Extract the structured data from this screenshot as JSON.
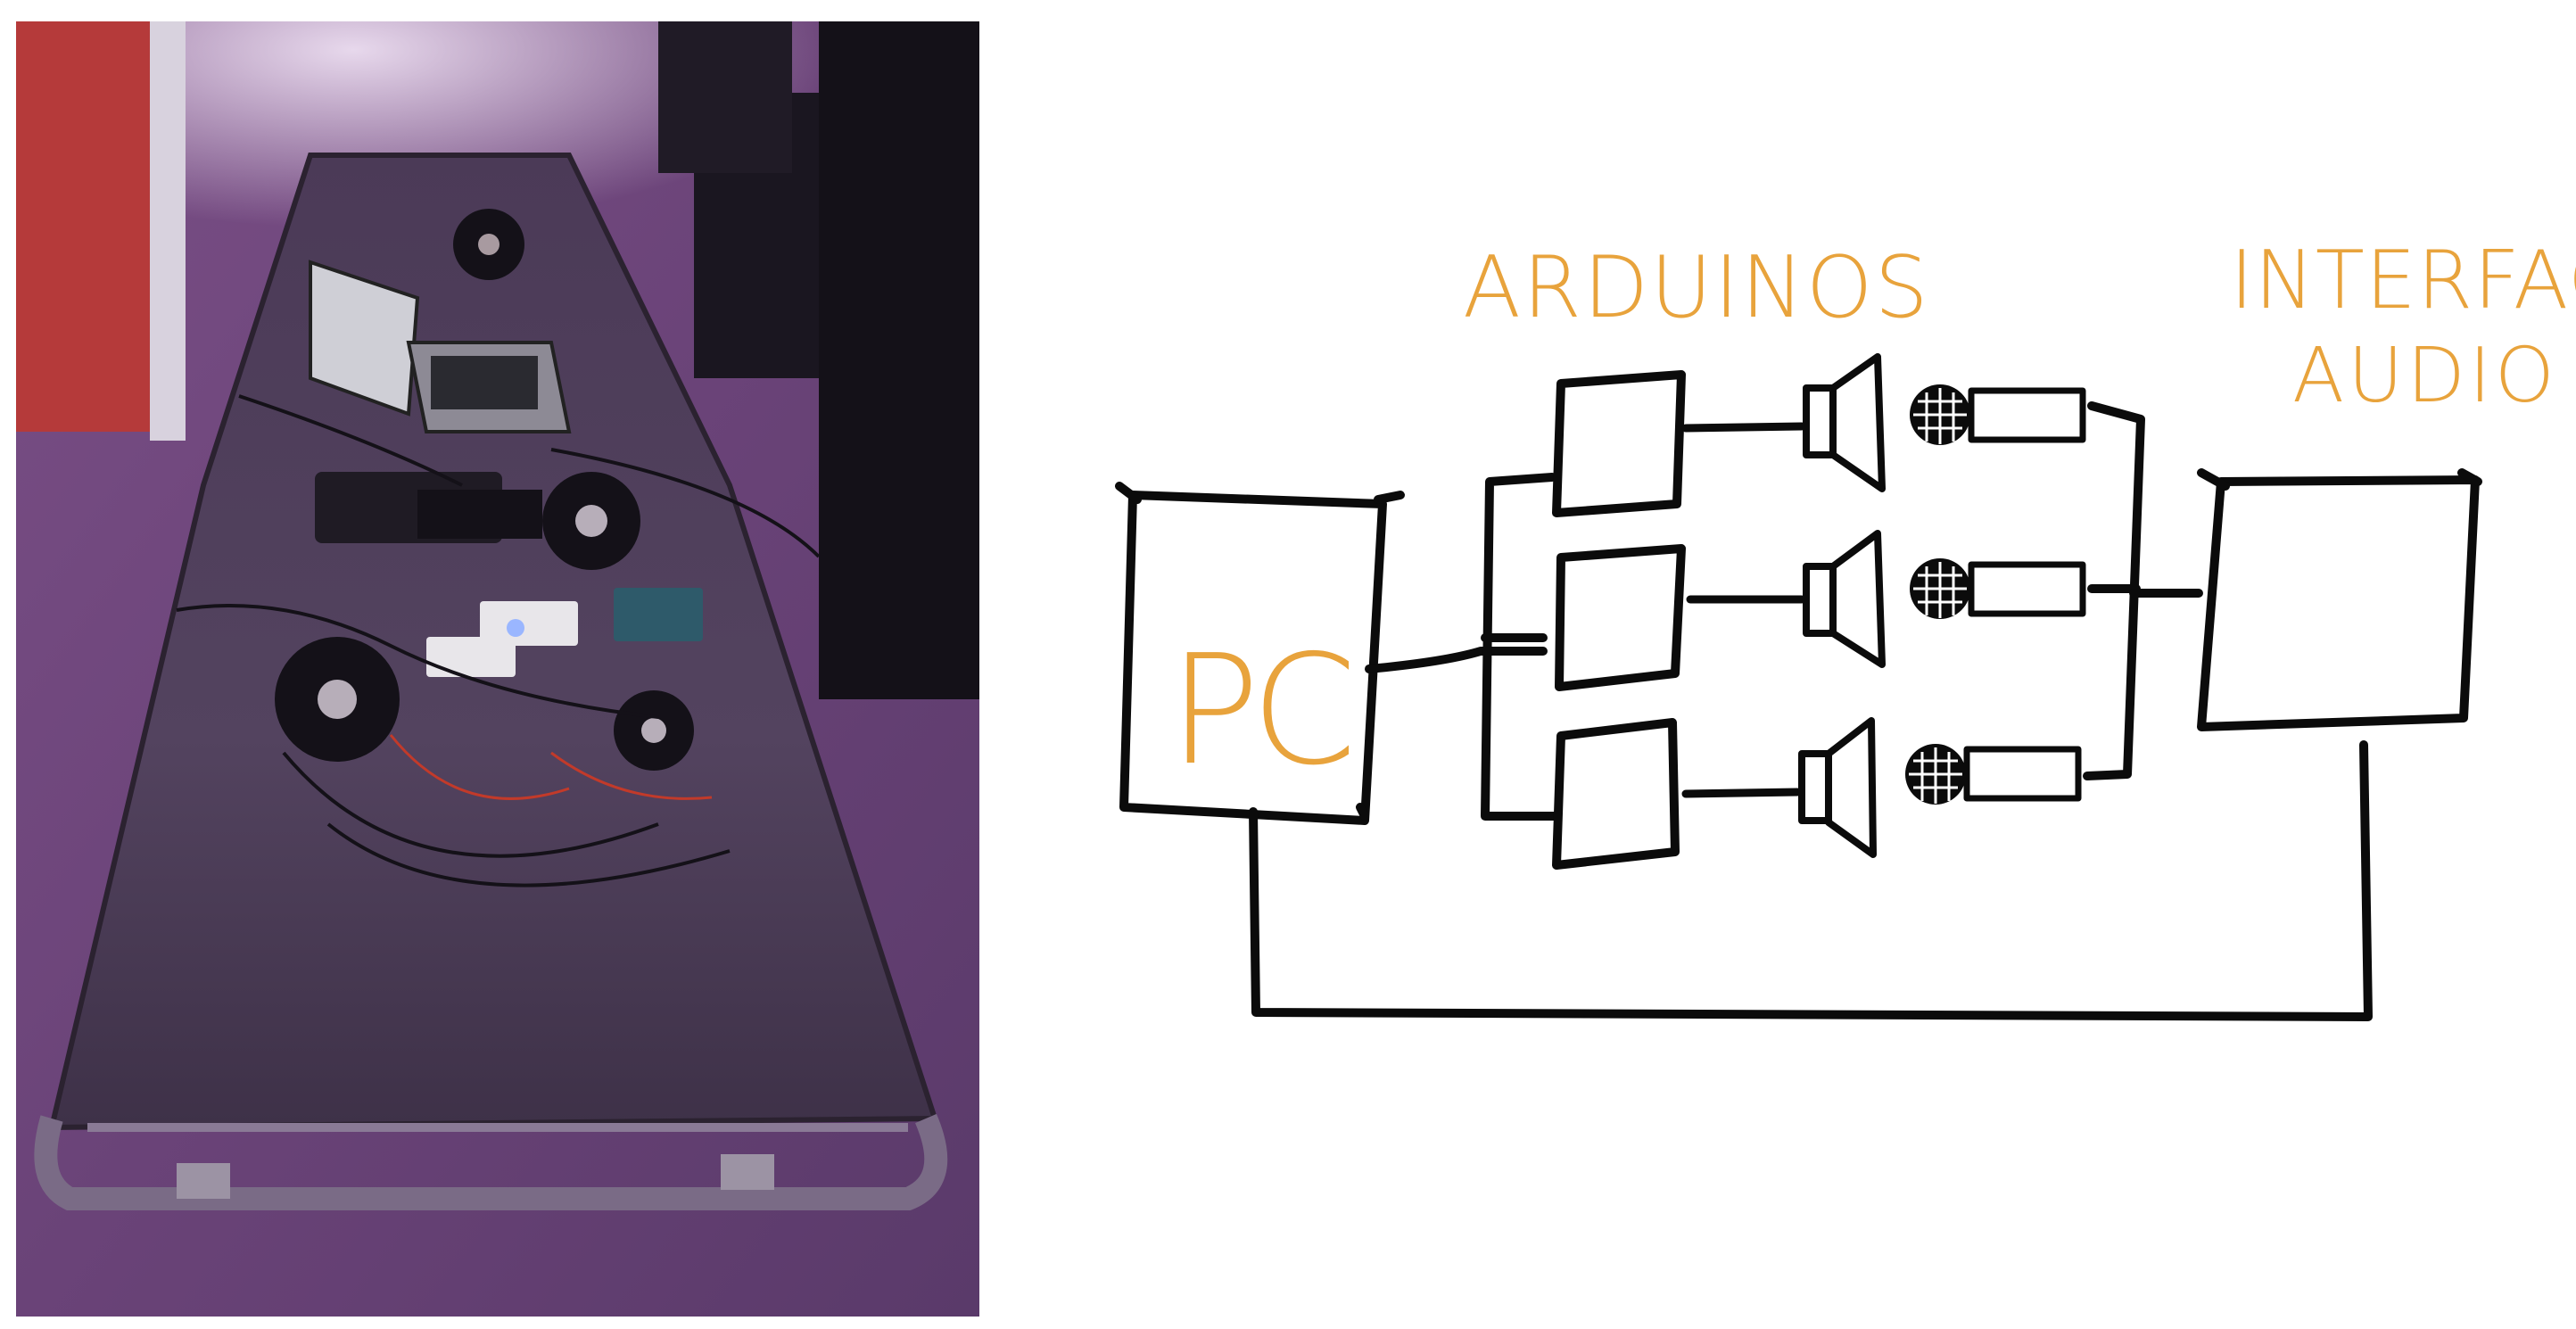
{
  "photo": {
    "description_icon": "installation-photo"
  },
  "diagram": {
    "labels": {
      "arduinos": "ARDUINOS",
      "pc": "PC",
      "interface_line1": "INTERFACE",
      "interface_line2": "AUDIO"
    },
    "accent_color": "#E8A33C",
    "ink_color": "#0b0b0b"
  }
}
